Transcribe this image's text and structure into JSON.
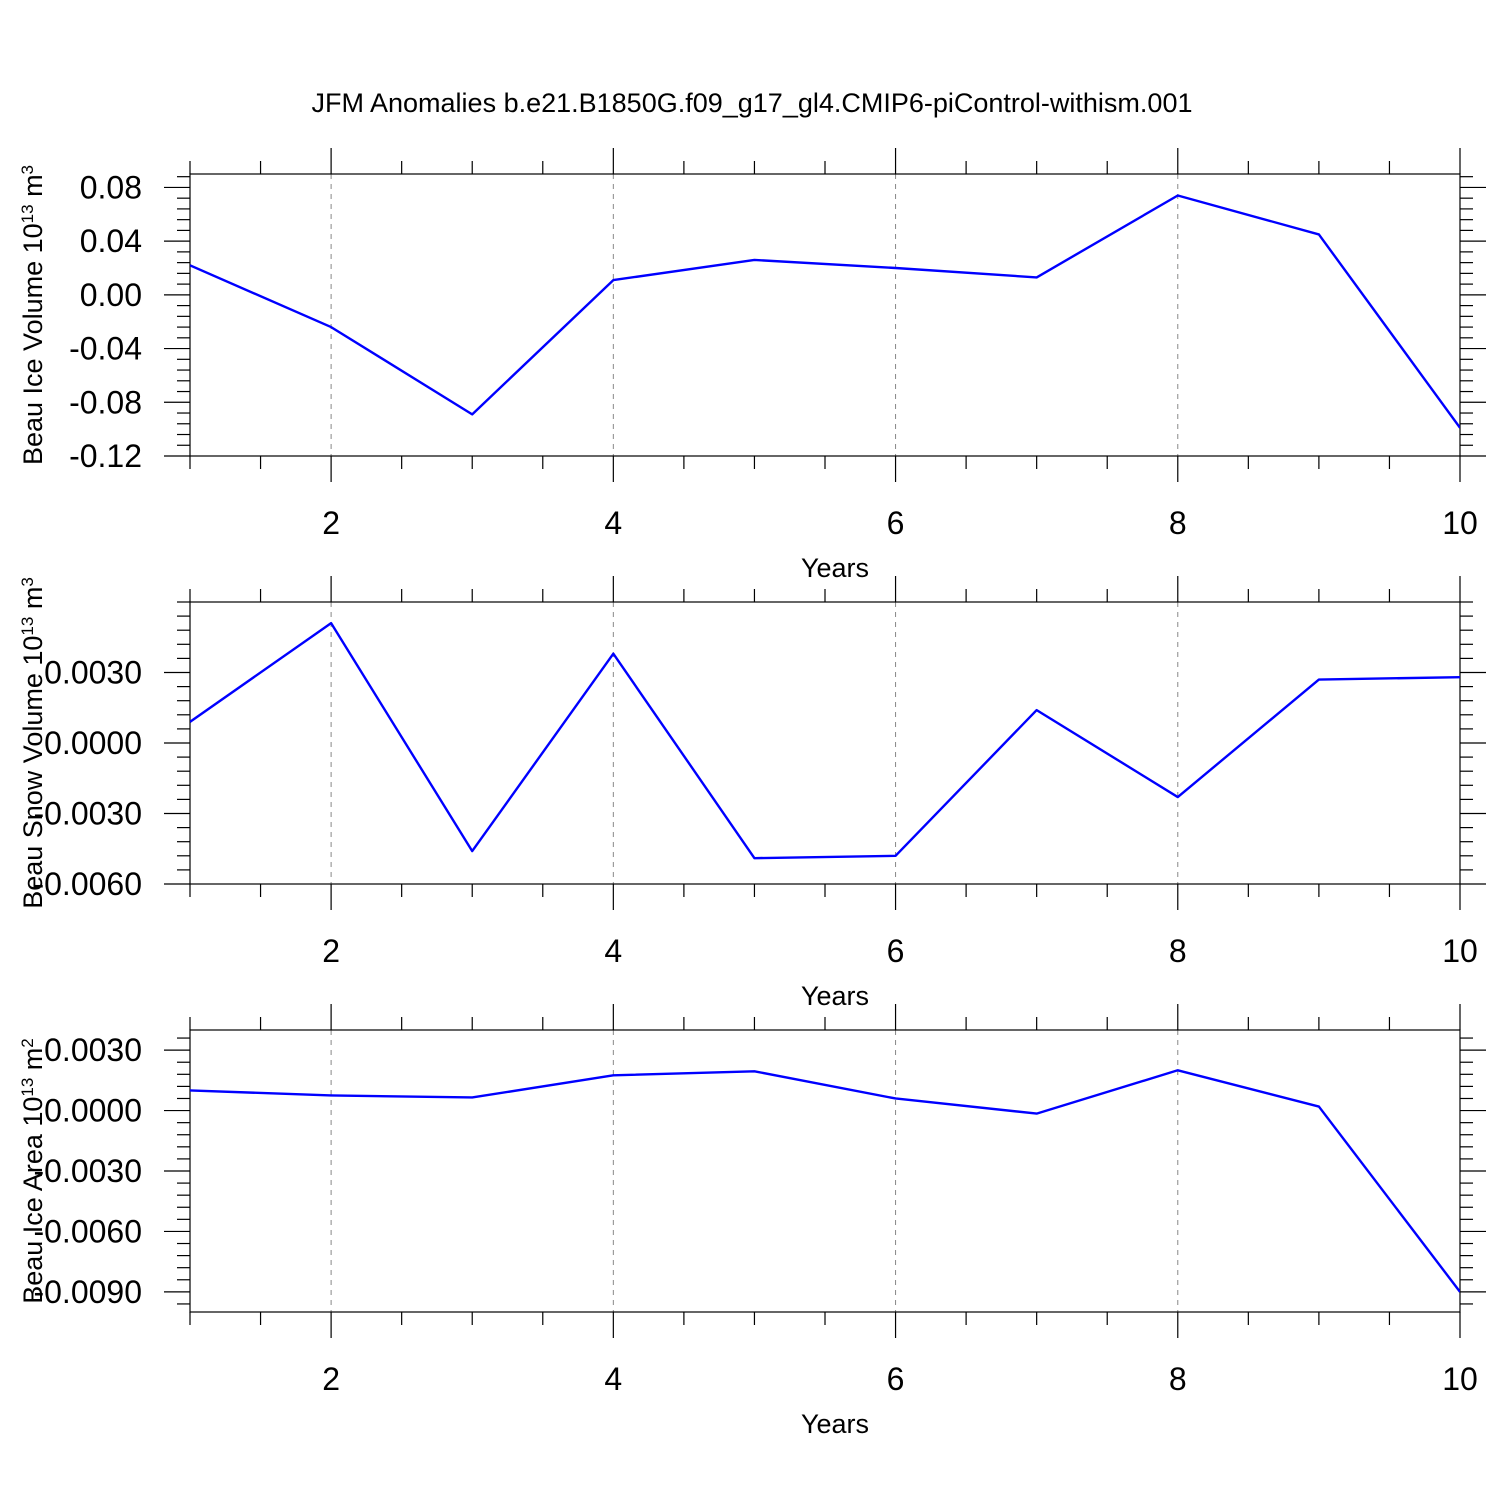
{
  "title": "JFM Anomalies b.e21.B1850G.f09_g17_gl4.CMIP6-piControl-withism.001",
  "colors": {
    "line": "#0000ff",
    "grid": "#888888",
    "axis": "#000000"
  },
  "chart_data": [
    {
      "type": "line",
      "xlabel": "Years",
      "ylabel": {
        "prefix": "Beau Ice Volume 10",
        "sup1": "13",
        "mid": " m",
        "sup2": "3"
      },
      "xlim": [
        1,
        10
      ],
      "ylim": [
        -0.12,
        0.09
      ],
      "xticks": [
        2,
        4,
        6,
        8,
        10
      ],
      "xtick_labels": [
        "2",
        "4",
        "6",
        "8",
        "10"
      ],
      "yticks": [
        0.08,
        0.04,
        0.0,
        -0.04,
        -0.08,
        -0.12
      ],
      "ytick_labels": [
        "0.08",
        "0.04",
        "0.00",
        "-0.04",
        "-0.08",
        "-0.12"
      ],
      "grid": "vertical dashed at major x ticks",
      "x": [
        1,
        2,
        3,
        4,
        5,
        6,
        7,
        8,
        9,
        10
      ],
      "values": [
        0.022,
        -0.024,
        -0.089,
        0.011,
        0.026,
        0.02,
        0.013,
        0.074,
        0.045,
        -0.099
      ]
    },
    {
      "type": "line",
      "xlabel": "Years",
      "ylabel": {
        "prefix": "Beau Snow Volume 10",
        "sup1": "13",
        "mid": " m",
        "sup2": "3"
      },
      "xlim": [
        1,
        10
      ],
      "ylim": [
        -0.006,
        0.006
      ],
      "xticks": [
        2,
        4,
        6,
        8,
        10
      ],
      "xtick_labels": [
        "2",
        "4",
        "6",
        "8",
        "10"
      ],
      "yticks": [
        0.003,
        0.0,
        -0.003,
        -0.006
      ],
      "ytick_labels": [
        "0.0030",
        "0.0000",
        "-0.0030",
        "-0.0060"
      ],
      "grid": "vertical dashed at major x ticks",
      "x": [
        1,
        2,
        3,
        4,
        5,
        6,
        7,
        8,
        9,
        10
      ],
      "values": [
        0.0009,
        0.0051,
        -0.0046,
        0.0038,
        -0.0049,
        -0.0048,
        0.0014,
        -0.0023,
        0.0027,
        0.0028
      ]
    },
    {
      "type": "line",
      "xlabel": "Years",
      "ylabel": {
        "prefix": "Beau Ice Area 10",
        "sup1": "13",
        "mid": " m",
        "sup2": "2"
      },
      "xlim": [
        1,
        10
      ],
      "ylim": [
        -0.01,
        0.004
      ],
      "xticks": [
        2,
        4,
        6,
        8,
        10
      ],
      "xtick_labels": [
        "2",
        "4",
        "6",
        "8",
        "10"
      ],
      "yticks": [
        0.003,
        0.0,
        -0.003,
        -0.006,
        -0.009
      ],
      "ytick_labels": [
        "0.0030",
        "0.0000",
        "-0.0030",
        "-0.0060",
        "-0.0090"
      ],
      "grid": "vertical dashed at major x ticks",
      "x": [
        1,
        2,
        3,
        4,
        5,
        6,
        7,
        8,
        9,
        10
      ],
      "values": [
        0.001,
        0.00075,
        0.00065,
        0.00175,
        0.00195,
        0.0006,
        -0.00015,
        0.002,
        0.0002,
        -0.009
      ]
    }
  ]
}
